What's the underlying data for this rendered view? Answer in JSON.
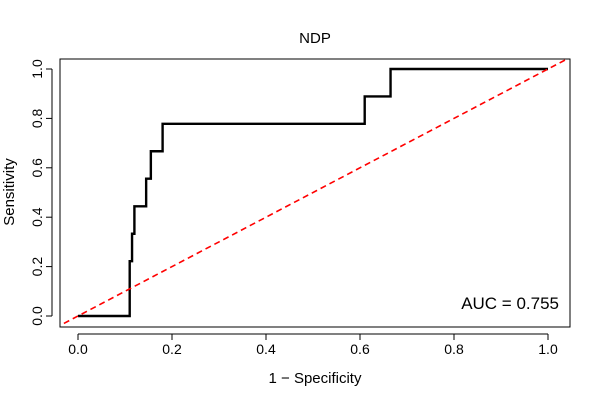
{
  "chart_data": {
    "type": "line",
    "title": "NDP",
    "xlabel": "1 − Specificity",
    "ylabel": "Sensitivity",
    "xlim": [
      0,
      1
    ],
    "ylim": [
      0,
      1
    ],
    "x_ticks": [
      0.0,
      0.2,
      0.4,
      0.6,
      0.8,
      1.0
    ],
    "x_tick_labels": [
      "0.0",
      "0.2",
      "0.4",
      "0.6",
      "0.8",
      "1.0"
    ],
    "y_ticks": [
      0.0,
      0.2,
      0.4,
      0.6,
      0.8,
      1.0
    ],
    "y_tick_labels": [
      "0.0",
      "0.2",
      "0.4",
      "0.6",
      "0.8",
      "1.0"
    ],
    "grid": false,
    "legend": "none",
    "annotation": "AUC = 0.755",
    "series": [
      {
        "style": "solid",
        "color": "#000000",
        "points": [
          [
            0.0,
            0.0
          ],
          [
            0.11,
            0.0
          ],
          [
            0.11,
            0.222
          ],
          [
            0.115,
            0.222
          ],
          [
            0.115,
            0.333
          ],
          [
            0.12,
            0.333
          ],
          [
            0.12,
            0.444
          ],
          [
            0.145,
            0.444
          ],
          [
            0.145,
            0.556
          ],
          [
            0.155,
            0.556
          ],
          [
            0.155,
            0.667
          ],
          [
            0.18,
            0.667
          ],
          [
            0.18,
            0.778
          ],
          [
            0.61,
            0.778
          ],
          [
            0.61,
            0.889
          ],
          [
            0.665,
            0.889
          ],
          [
            0.665,
            1.0
          ],
          [
            1.0,
            1.0
          ]
        ]
      },
      {
        "style": "dashed",
        "color": "#ff0000",
        "points": [
          [
            -0.03,
            -0.03
          ],
          [
            1.04,
            1.04
          ]
        ]
      }
    ]
  }
}
